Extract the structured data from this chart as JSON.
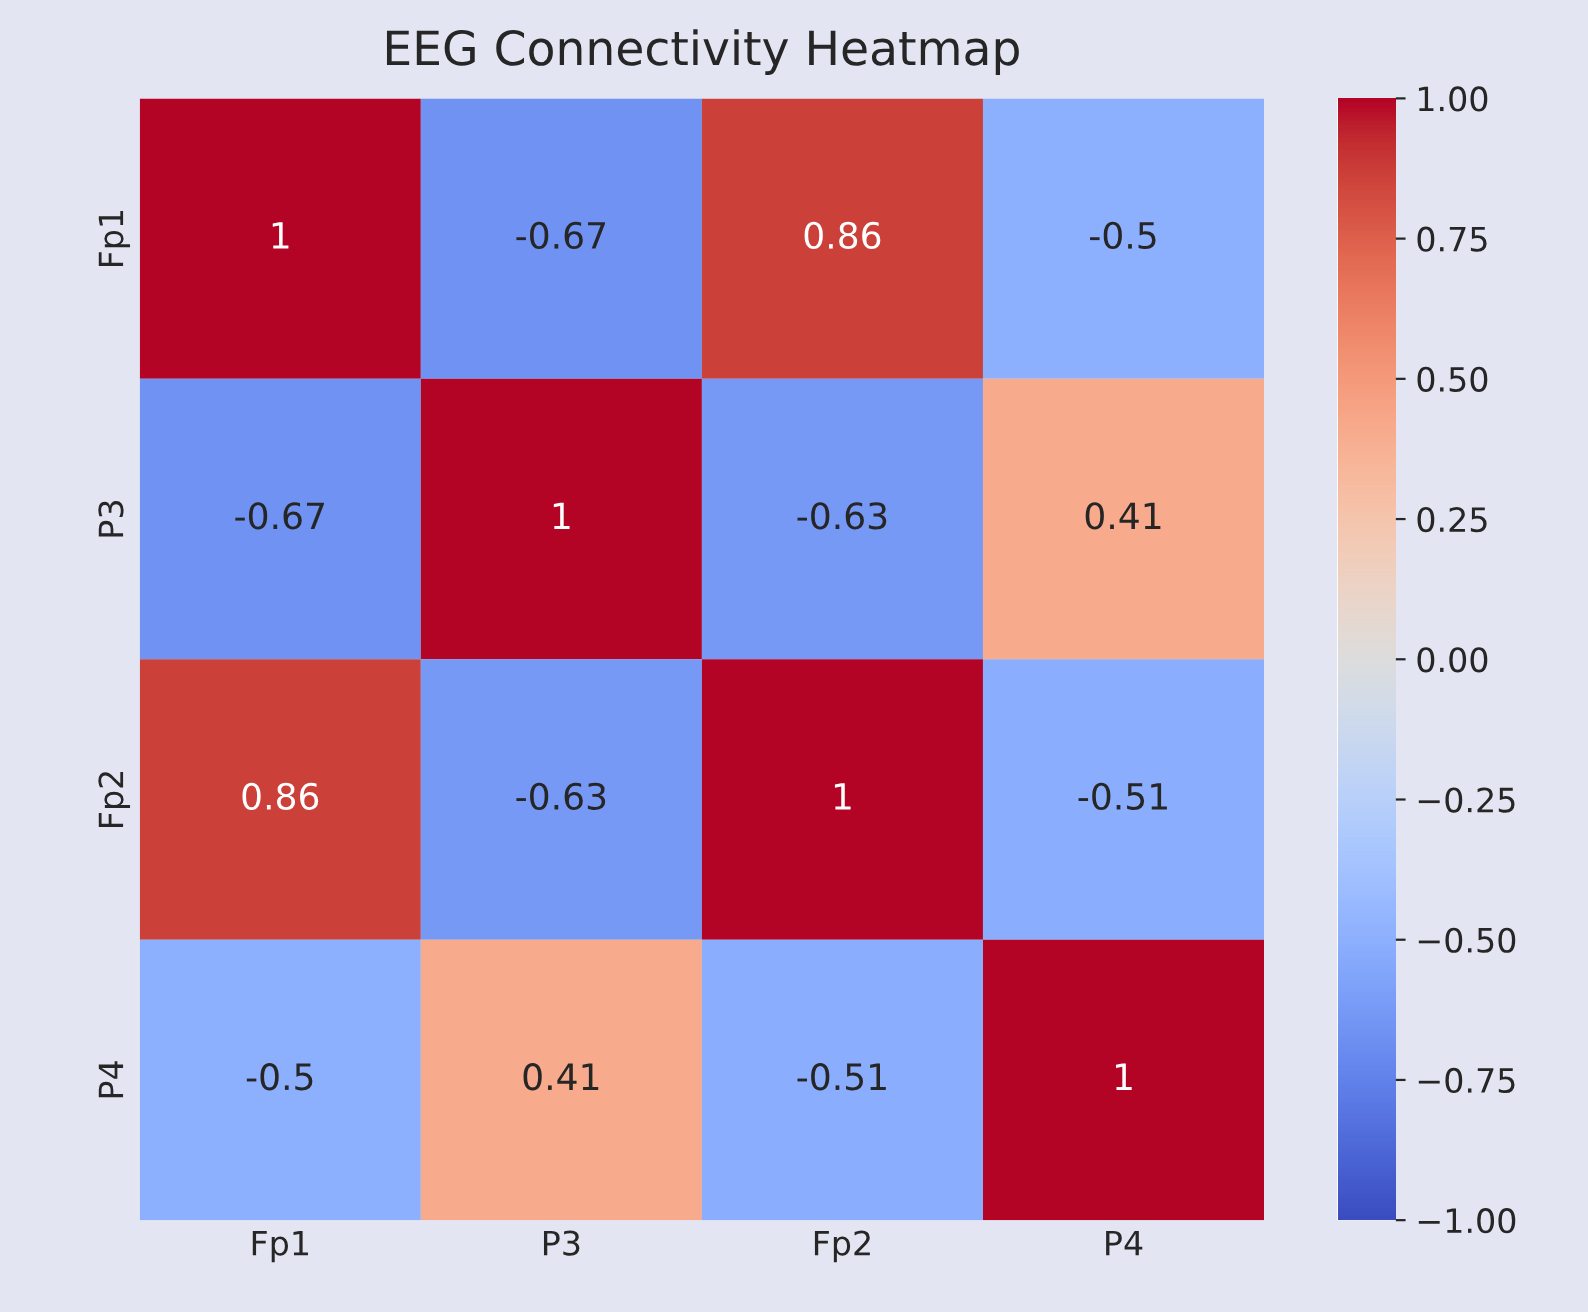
{
  "chart_data": {
    "type": "heatmap",
    "title": "EEG Connectivity Heatmap",
    "categories": [
      "Fp1",
      "P3",
      "Fp2",
      "P4"
    ],
    "y_categories": [
      "Fp1",
      "P3",
      "Fp2",
      "P4"
    ],
    "cells": [
      [
        1,
        -0.67,
        0.86,
        -0.5
      ],
      [
        -0.67,
        1,
        -0.63,
        0.41
      ],
      [
        0.86,
        -0.63,
        1,
        -0.51
      ],
      [
        -0.5,
        0.41,
        -0.51,
        1
      ]
    ],
    "data_labels": true,
    "clim": [
      -1.0,
      1.0
    ],
    "cticks": [
      {
        "value": -1.0,
        "label": "−1.00"
      },
      {
        "value": -0.75,
        "label": "−0.75"
      },
      {
        "value": -0.5,
        "label": "−0.50"
      },
      {
        "value": -0.25,
        "label": "−0.25"
      },
      {
        "value": 0.0,
        "label": "0.00"
      },
      {
        "value": 0.25,
        "label": "0.25"
      },
      {
        "value": 0.5,
        "label": "0.50"
      },
      {
        "value": 0.75,
        "label": "0.75"
      },
      {
        "value": 1.0,
        "label": "1.00"
      }
    ],
    "grid": false
  }
}
